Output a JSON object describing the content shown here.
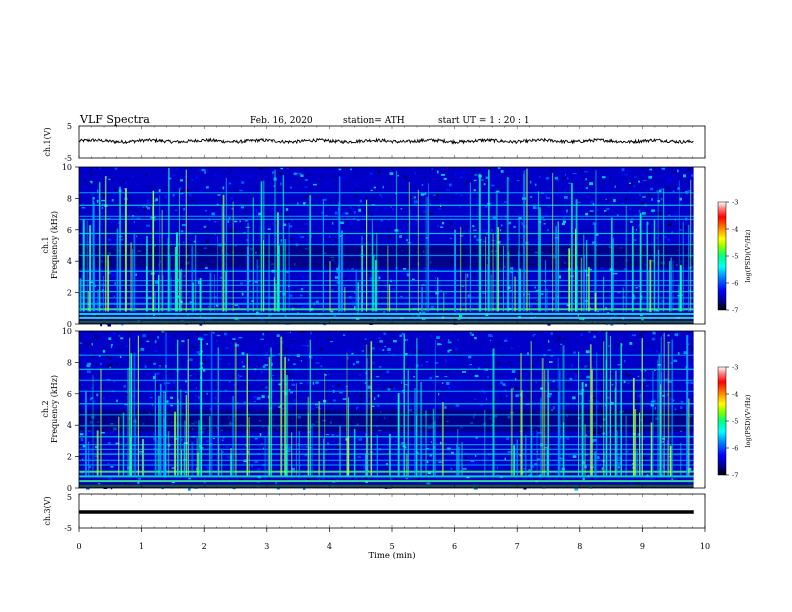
{
  "header": {
    "title": "VLF  Spectra",
    "date": "Feb. 16, 2020",
    "station": "station= ATH",
    "start": "start  UT  =    1  : 20 : 1"
  },
  "chart_data": [
    {
      "type": "line",
      "panel": "ch1-waveform",
      "ylabel": "ch.1(V)",
      "yticks": [
        "5",
        "-5"
      ],
      "ylim": [
        -5,
        5
      ],
      "xlim": [
        0,
        10
      ],
      "series": [
        {
          "x_range": [
            0,
            9.82
          ],
          "level": 0.3,
          "jitter": 1.0
        }
      ],
      "grid": false
    },
    {
      "type": "heatmap",
      "panel": "ch1-spectrogram",
      "ylabel": "ch.1\nFrequency  (kHz)",
      "xlim": [
        0,
        10
      ],
      "x_data_end": 9.82,
      "ylim": [
        0,
        10
      ],
      "yticks": [
        "0",
        "2",
        "4",
        "6",
        "8",
        "10"
      ],
      "colorbar": {
        "label": "log(PSD)(V²/Hz)",
        "ticks": [
          "-3",
          "-4",
          "-5",
          "-6",
          "-7"
        ],
        "range": [
          -7,
          -3
        ],
        "colors": [
          "#000000",
          "#00008b",
          "#0000ff",
          "#0080ff",
          "#00ffff",
          "#00ff80",
          "#80ff00",
          "#ffff00",
          "#ff8000",
          "#ff0000",
          "#ff8080",
          "#ffffff"
        ]
      },
      "bands_khz": [
        0.2,
        0.45,
        0.7,
        1.0,
        1.35,
        1.7,
        2.1,
        2.5,
        2.8,
        3.4,
        4.4,
        5.1,
        5.8,
        6.7,
        6.9,
        7.6,
        8.4
      ]
    },
    {
      "type": "heatmap",
      "panel": "ch2-spectrogram",
      "ylabel": "ch.2\nFrequency  (kHz)",
      "xlim": [
        0,
        10
      ],
      "x_data_end": 9.82,
      "ylim": [
        0,
        10
      ],
      "yticks": [
        "0",
        "2",
        "4",
        "6",
        "8",
        "10"
      ],
      "colorbar": {
        "label": "log(PSD)(V²/Hz)",
        "ticks": [
          "-3",
          "-4",
          "-5",
          "-6",
          "-7"
        ],
        "range": [
          -7,
          -3
        ]
      },
      "bands_khz": [
        0.2,
        0.5,
        0.8,
        1.1,
        1.5,
        1.8,
        2.2,
        2.5,
        2.8,
        3.3,
        4.0,
        4.7,
        5.4,
        6.2,
        6.9,
        7.6,
        8.5
      ]
    },
    {
      "type": "line",
      "panel": "ch3-waveform",
      "ylabel": "ch.3(V)",
      "yticks": [
        "5",
        "-5"
      ],
      "ylim": [
        -5,
        5
      ],
      "xlim": [
        0,
        10
      ],
      "series": [
        {
          "x_range": [
            0,
            9.82
          ],
          "level": 0.0,
          "jitter": 0.0
        }
      ],
      "xlabel": "Time  (min)",
      "xticks": [
        "0",
        "1",
        "2",
        "3",
        "4",
        "5",
        "6",
        "7",
        "8",
        "9",
        "10"
      ]
    }
  ]
}
